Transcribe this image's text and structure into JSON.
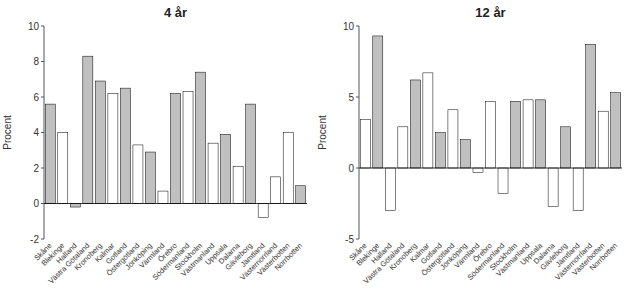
{
  "chart_data": [
    {
      "type": "bar",
      "title": "4 år",
      "ylabel": "Procent",
      "categories": [
        "Skåne",
        "Blekinge",
        "Halland",
        "Västra Götaland",
        "Kronoberg",
        "Kalmar",
        "Gotland",
        "Östergötland",
        "Jönköping",
        "Värmland",
        "Örebro",
        "Södermanland",
        "Stockholm",
        "Västmanland",
        "Uppsala",
        "Dalarna",
        "Gävleborg",
        "Jämtland",
        "Västernorrland",
        "Västerbotten",
        "Norrbotten"
      ],
      "values": [
        5.6,
        4.0,
        -0.2,
        8.3,
        6.9,
        6.2,
        6.5,
        3.3,
        2.9,
        0.7,
        6.2,
        6.3,
        7.4,
        3.4,
        3.9,
        2.1,
        5.6,
        -0.8,
        1.5,
        4.0,
        1.0
      ],
      "colors": [
        "#c0c0c0",
        "#ffffff",
        "#c0c0c0",
        "#c0c0c0",
        "#c0c0c0",
        "#ffffff",
        "#c0c0c0",
        "#ffffff",
        "#c0c0c0",
        "#ffffff",
        "#c0c0c0",
        "#ffffff",
        "#c0c0c0",
        "#ffffff",
        "#c0c0c0",
        "#ffffff",
        "#c0c0c0",
        "#ffffff",
        "#ffffff",
        "#ffffff",
        "#c0c0c0"
      ],
      "ylim": [
        -2,
        10
      ],
      "yticks": [
        -2,
        0,
        2,
        4,
        6,
        8,
        10
      ],
      "grid": false
    },
    {
      "type": "bar",
      "title": "12 år",
      "ylabel": "Procent",
      "categories": [
        "Skåne",
        "Blekinge",
        "Halland",
        "Västra Götaland",
        "Kronoberg",
        "Kalmar",
        "Gotland",
        "Östergötland",
        "Jönköping",
        "Värmland",
        "Örebro",
        "Södermanland",
        "Stockholm",
        "Västmanland",
        "Uppsala",
        "Dalarna",
        "Gävleborg",
        "Jämtland",
        "Västernorrland",
        "Västerbotten",
        "Norrbotten"
      ],
      "values": [
        3.4,
        9.3,
        -3.0,
        2.9,
        6.2,
        6.7,
        2.5,
        4.1,
        2.0,
        -0.3,
        4.7,
        -1.8,
        4.7,
        4.8,
        4.8,
        -2.7,
        2.9,
        -3.0,
        8.7,
        4.0,
        5.3
      ],
      "colors": [
        "#ffffff",
        "#c0c0c0",
        "#ffffff",
        "#ffffff",
        "#c0c0c0",
        "#ffffff",
        "#c0c0c0",
        "#ffffff",
        "#c0c0c0",
        "#ffffff",
        "#ffffff",
        "#ffffff",
        "#c0c0c0",
        "#ffffff",
        "#c0c0c0",
        "#ffffff",
        "#c0c0c0",
        "#ffffff",
        "#c0c0c0",
        "#ffffff",
        "#c0c0c0"
      ],
      "ylim": [
        -5,
        10
      ],
      "yticks": [
        -5,
        0,
        5,
        10
      ],
      "grid": false
    }
  ]
}
